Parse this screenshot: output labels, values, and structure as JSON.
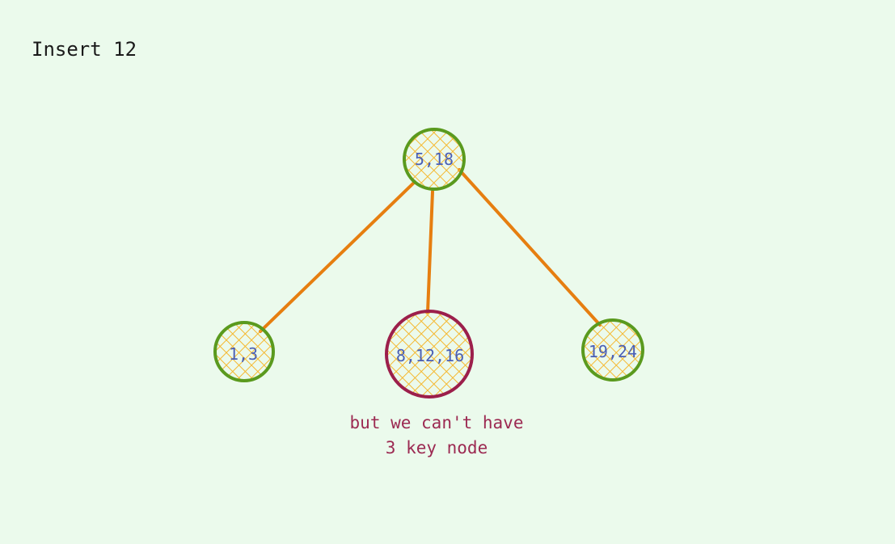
{
  "title": "Insert 12",
  "colors": {
    "background": "#ebfaec",
    "node_fill": "#f5b830",
    "node_border": "#5a9a1e",
    "overflow_border": "#9c1f4b",
    "edge": "#e67e10",
    "node_text": "#4a5fb5",
    "note_text": "#9c2a52"
  },
  "nodes": {
    "root": {
      "label": "5,18"
    },
    "left": {
      "label": "1,3"
    },
    "middle": {
      "label": "8,12,16"
    },
    "right": {
      "label": "19,24"
    }
  },
  "note": {
    "line1": "but we can't have",
    "line2": "3 key node"
  }
}
